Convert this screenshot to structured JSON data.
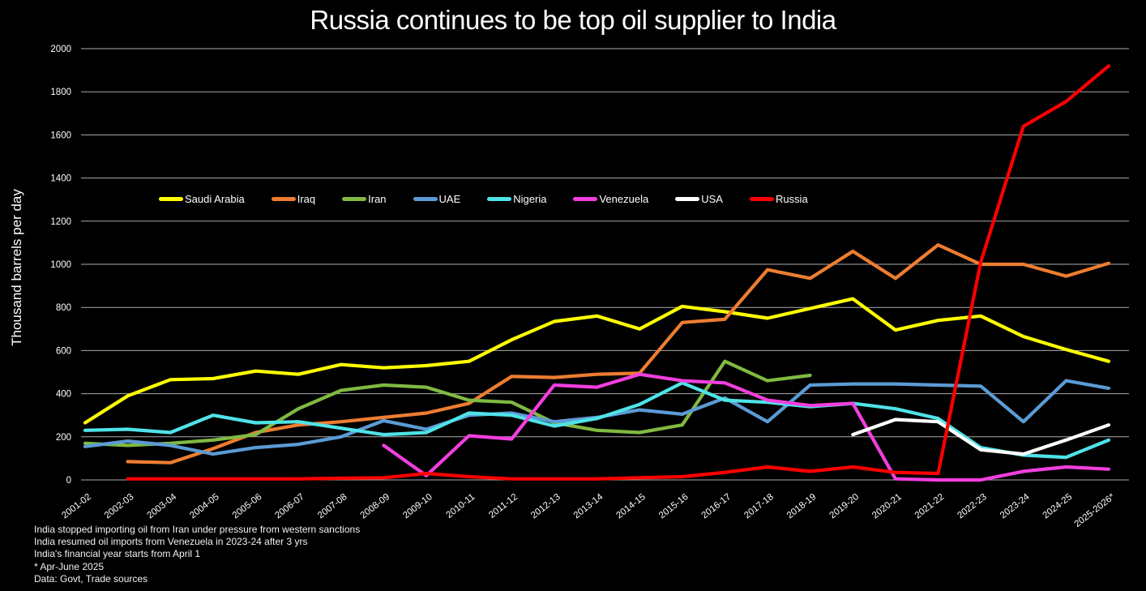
{
  "title": "Russia continues to be top oil supplier to India",
  "chart_data": {
    "type": "line",
    "title": "Russia continues to be top oil supplier to India",
    "xlabel": "",
    "ylabel": "Thousand barrels per day",
    "ylim": [
      0,
      2000
    ],
    "ytick_step": 200,
    "grid": true,
    "legend_position": "top-center-inside",
    "categories": [
      "2001-02",
      "2002-03",
      "2003-04",
      "2004-05",
      "2005-06",
      "2006-07",
      "2007-08",
      "2008-09",
      "2009-10",
      "2010-11",
      "2011-12",
      "2012-13",
      "2013-14",
      "2014-15",
      "2015-16",
      "2016-17",
      "2017-18",
      "2018-19",
      "2019-20",
      "2020-21",
      "2021-22",
      "2022-23",
      "2023-24",
      "2024-25",
      "2025-2026*"
    ],
    "series": [
      {
        "name": "Saudi Arabia",
        "color": "#FFFF00",
        "values": [
          265,
          390,
          465,
          470,
          505,
          490,
          535,
          520,
          530,
          550,
          650,
          735,
          760,
          700,
          805,
          780,
          750,
          795,
          840,
          695,
          740,
          760,
          665,
          605,
          550
        ]
      },
      {
        "name": "Iraq",
        "color": "#ED7D31",
        "values": [
          null,
          85,
          80,
          145,
          220,
          255,
          270,
          290,
          310,
          355,
          480,
          475,
          490,
          495,
          730,
          745,
          975,
          935,
          1060,
          935,
          1090,
          1000,
          1000,
          945,
          1005
        ]
      },
      {
        "name": "Iran",
        "color": "#7FBA42",
        "values": [
          170,
          160,
          170,
          185,
          210,
          330,
          415,
          440,
          430,
          370,
          360,
          265,
          230,
          220,
          255,
          550,
          460,
          485,
          null,
          null,
          null,
          null,
          null,
          null,
          null
        ]
      },
      {
        "name": "UAE",
        "color": "#5B9BD5",
        "values": [
          155,
          180,
          160,
          120,
          150,
          165,
          200,
          275,
          235,
          300,
          310,
          270,
          290,
          325,
          305,
          380,
          270,
          440,
          445,
          445,
          440,
          435,
          270,
          460,
          425
        ]
      },
      {
        "name": "Nigeria",
        "color": "#4FE3E8",
        "values": [
          230,
          235,
          220,
          300,
          265,
          270,
          240,
          210,
          220,
          310,
          300,
          250,
          285,
          350,
          450,
          370,
          360,
          340,
          355,
          330,
          285,
          150,
          115,
          105,
          185
        ]
      },
      {
        "name": "Venezuela",
        "color": "#F23FDE",
        "values": [
          null,
          null,
          null,
          null,
          null,
          null,
          null,
          160,
          20,
          205,
          190,
          440,
          430,
          490,
          460,
          450,
          370,
          345,
          355,
          5,
          0,
          0,
          40,
          60,
          50
        ]
      },
      {
        "name": "USA",
        "color": "#FFFFFF",
        "values": [
          null,
          null,
          null,
          null,
          null,
          null,
          null,
          null,
          null,
          null,
          null,
          null,
          null,
          null,
          null,
          null,
          null,
          null,
          210,
          280,
          270,
          140,
          120,
          185,
          255
        ]
      },
      {
        "name": "Russia",
        "color": "#FF0000",
        "values": [
          null,
          5,
          5,
          5,
          5,
          5,
          8,
          10,
          30,
          15,
          5,
          5,
          5,
          10,
          15,
          35,
          60,
          40,
          60,
          35,
          30,
          1010,
          1640,
          1755,
          1920
        ]
      }
    ],
    "colors": {
      "background": "#000000",
      "gridline": "#ABABAB",
      "text": "#FFFFFF"
    }
  },
  "footnotes": [
    "India stopped importing oil from Iran under pressure from western sanctions",
    "India resumed oil imports from Venezuela in 2023-24 after 3 yrs",
    "India's financial year starts from April 1",
    "* Apr-June 2025",
    "Data: Govt, Trade sources"
  ]
}
